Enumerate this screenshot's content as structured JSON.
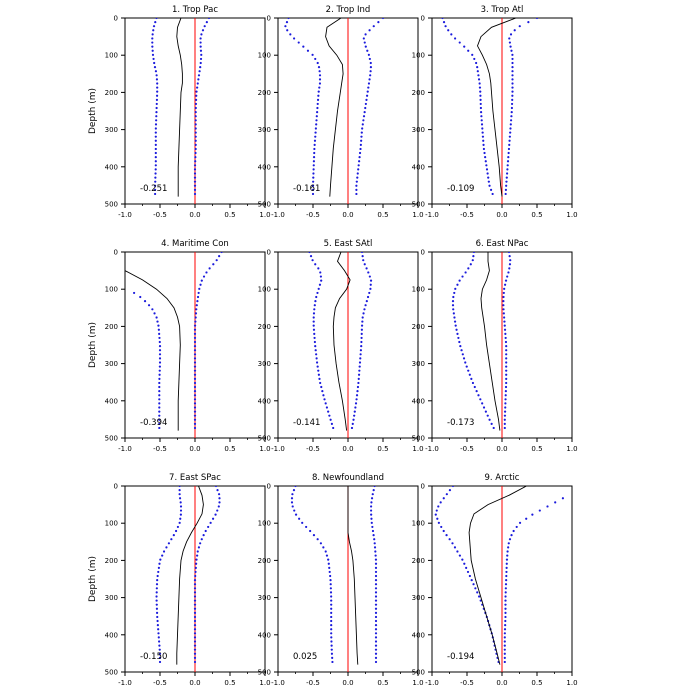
{
  "colors": {
    "profile": "#000000",
    "spread_dots": "#1a1adc",
    "zero_line": "#ff0000",
    "frame": "#000000"
  },
  "chart_data": [
    {
      "type": "line",
      "title": "1. Trop Pac",
      "ylabel": "Depth (m)",
      "value_label": "-0.251",
      "xlim": [
        -1.0,
        1.0
      ],
      "ylim": [
        500,
        0
      ],
      "x_ticks": [
        "-1.0",
        "-0.5",
        "0.0",
        "0.5",
        "1.0"
      ],
      "y_ticks": [
        "0",
        "100",
        "200",
        "300",
        "400",
        "500"
      ],
      "depth": [
        0,
        25,
        50,
        75,
        100,
        125,
        150,
        175,
        200,
        250,
        300,
        350,
        400,
        450,
        480
      ],
      "mean": [
        -0.2,
        -0.25,
        -0.26,
        -0.24,
        -0.21,
        -0.19,
        -0.18,
        -0.18,
        -0.2,
        -0.21,
        -0.22,
        -0.23,
        -0.24,
        -0.24,
        -0.24
      ],
      "lower": [
        -0.55,
        -0.59,
        -0.61,
        -0.61,
        -0.6,
        -0.58,
        -0.55,
        -0.54,
        -0.54,
        -0.55,
        -0.56,
        -0.56,
        -0.56,
        -0.57,
        -0.57
      ],
      "upper": [
        0.2,
        0.13,
        0.08,
        0.08,
        0.09,
        0.08,
        0.06,
        0.04,
        0.02,
        0.01,
        0.01,
        0.01,
        0.0,
        0.0,
        0.0
      ]
    },
    {
      "type": "line",
      "title": "2. Trop Ind",
      "ylabel": "",
      "value_label": "-0.161",
      "xlim": [
        -1.0,
        1.0
      ],
      "ylim": [
        500,
        0
      ],
      "x_ticks": [
        "-1.0",
        "-0.5",
        "0.0",
        "0.5",
        "1.0"
      ],
      "y_ticks": [
        "0",
        "100",
        "200",
        "300",
        "400",
        "500"
      ],
      "depth": [
        0,
        25,
        50,
        75,
        100,
        125,
        150,
        175,
        200,
        250,
        300,
        350,
        400,
        450,
        480
      ],
      "mean": [
        -0.1,
        -0.3,
        -0.32,
        -0.27,
        -0.16,
        -0.08,
        -0.07,
        -0.09,
        -0.11,
        -0.15,
        -0.18,
        -0.21,
        -0.23,
        -0.25,
        -0.26
      ],
      "lower": [
        -0.85,
        -0.9,
        -0.8,
        -0.65,
        -0.5,
        -0.42,
        -0.4,
        -0.4,
        -0.42,
        -0.44,
        -0.46,
        -0.48,
        -0.49,
        -0.5,
        -0.5
      ],
      "upper": [
        0.5,
        0.35,
        0.22,
        0.25,
        0.3,
        0.33,
        0.32,
        0.3,
        0.28,
        0.24,
        0.2,
        0.18,
        0.15,
        0.12,
        0.12
      ]
    },
    {
      "type": "line",
      "title": "3. Trop Atl",
      "ylabel": "",
      "value_label": "-0.109",
      "xlim": [
        -1.0,
        1.0
      ],
      "ylim": [
        500,
        0
      ],
      "x_ticks": [
        "-1.0",
        "-0.5",
        "0.0",
        "0.5",
        "1.0"
      ],
      "y_ticks": [
        "0",
        "100",
        "200",
        "300",
        "400",
        "500"
      ],
      "depth": [
        0,
        25,
        50,
        75,
        100,
        125,
        150,
        175,
        200,
        250,
        300,
        350,
        400,
        450,
        480
      ],
      "mean": [
        0.2,
        -0.15,
        -0.3,
        -0.35,
        -0.28,
        -0.22,
        -0.18,
        -0.16,
        -0.15,
        -0.13,
        -0.1,
        -0.07,
        -0.04,
        -0.02,
        0.0
      ],
      "lower": [
        -0.85,
        -0.8,
        -0.7,
        -0.55,
        -0.42,
        -0.36,
        -0.34,
        -0.32,
        -0.31,
        -0.3,
        -0.28,
        -0.26,
        -0.22,
        -0.18,
        -0.12
      ],
      "upper": [
        0.5,
        0.22,
        0.1,
        0.12,
        0.15,
        0.15,
        0.15,
        0.15,
        0.15,
        0.14,
        0.12,
        0.1,
        0.08,
        0.06,
        0.05
      ]
    },
    {
      "type": "line",
      "title": "4. Maritime Con",
      "ylabel": "Depth (m)",
      "value_label": "-0.394",
      "xlim": [
        -1.0,
        1.0
      ],
      "ylim": [
        500,
        0
      ],
      "x_ticks": [
        "-1.0",
        "-0.5",
        "0.0",
        "0.5",
        "1.0"
      ],
      "y_ticks": [
        "0",
        "100",
        "200",
        "300",
        "400",
        "500"
      ],
      "depth": [
        0,
        25,
        50,
        75,
        100,
        125,
        150,
        175,
        200,
        250,
        300,
        350,
        400,
        450,
        480
      ],
      "mean": [
        null,
        null,
        -1.0,
        -0.75,
        -0.55,
        -0.4,
        -0.3,
        -0.25,
        -0.22,
        -0.21,
        -0.22,
        -0.23,
        -0.24,
        -0.24,
        -0.24
      ],
      "lower": [
        null,
        null,
        null,
        null,
        -0.95,
        -0.75,
        -0.62,
        -0.55,
        -0.52,
        -0.5,
        -0.5,
        -0.51,
        -0.51,
        -0.51,
        -0.51
      ],
      "upper": [
        0.38,
        0.3,
        0.18,
        0.1,
        0.06,
        0.04,
        0.02,
        0.01,
        0.0,
        0.0,
        0.0,
        0.0,
        0.0,
        0.0,
        0.0
      ]
    },
    {
      "type": "line",
      "title": "5. East SAtl",
      "ylabel": "",
      "value_label": "-0.141",
      "xlim": [
        -1.0,
        1.0
      ],
      "ylim": [
        500,
        0
      ],
      "x_ticks": [
        "-1.0",
        "-0.5",
        "0.0",
        "0.5",
        "1.0"
      ],
      "y_ticks": [
        "0",
        "100",
        "200",
        "300",
        "400",
        "500"
      ],
      "depth": [
        0,
        25,
        50,
        75,
        100,
        125,
        150,
        175,
        200,
        250,
        300,
        350,
        400,
        450,
        480
      ],
      "mean": [
        -0.1,
        -0.15,
        -0.05,
        0.03,
        -0.02,
        -0.12,
        -0.18,
        -0.2,
        -0.21,
        -0.2,
        -0.17,
        -0.13,
        -0.08,
        -0.04,
        -0.02
      ],
      "lower": [
        -0.55,
        -0.5,
        -0.4,
        -0.38,
        -0.42,
        -0.46,
        -0.48,
        -0.49,
        -0.49,
        -0.47,
        -0.44,
        -0.4,
        -0.33,
        -0.25,
        -0.2
      ],
      "upper": [
        0.2,
        0.22,
        0.28,
        0.33,
        0.32,
        0.28,
        0.24,
        0.21,
        0.2,
        0.19,
        0.17,
        0.15,
        0.12,
        0.08,
        0.05
      ]
    },
    {
      "type": "line",
      "title": "6. East NPac",
      "ylabel": "",
      "value_label": "-0.173",
      "xlim": [
        -1.0,
        1.0
      ],
      "ylim": [
        500,
        0
      ],
      "x_ticks": [
        "-1.0",
        "-0.5",
        "0.0",
        "0.5",
        "1.0"
      ],
      "y_ticks": [
        "0",
        "100",
        "200",
        "300",
        "400",
        "500"
      ],
      "depth": [
        0,
        25,
        50,
        75,
        100,
        125,
        150,
        175,
        200,
        250,
        300,
        350,
        400,
        450,
        480
      ],
      "mean": [
        -0.2,
        -0.2,
        -0.18,
        -0.22,
        -0.28,
        -0.3,
        -0.29,
        -0.27,
        -0.25,
        -0.22,
        -0.18,
        -0.14,
        -0.1,
        -0.05,
        -0.03
      ],
      "lower": [
        -0.4,
        -0.42,
        -0.5,
        -0.6,
        -0.67,
        -0.7,
        -0.7,
        -0.68,
        -0.66,
        -0.6,
        -0.52,
        -0.42,
        -0.3,
        -0.18,
        -0.1
      ],
      "upper": [
        0.1,
        0.12,
        0.1,
        0.06,
        0.03,
        0.02,
        0.02,
        0.03,
        0.04,
        0.06,
        0.06,
        0.06,
        0.05,
        0.04,
        0.04
      ]
    },
    {
      "type": "line",
      "title": "7. East SPac",
      "ylabel": "Depth (m)",
      "value_label": "-0.150",
      "xlim": [
        -1.0,
        1.0
      ],
      "ylim": [
        500,
        0
      ],
      "x_ticks": [
        "-1.0",
        "-0.5",
        "0.0",
        "0.5",
        "1.0"
      ],
      "y_ticks": [
        "0",
        "100",
        "200",
        "300",
        "400",
        "500"
      ],
      "depth": [
        0,
        25,
        50,
        75,
        100,
        125,
        150,
        175,
        200,
        250,
        300,
        350,
        400,
        450,
        480
      ],
      "mean": [
        0.05,
        0.1,
        0.12,
        0.1,
        0.03,
        -0.05,
        -0.12,
        -0.17,
        -0.2,
        -0.22,
        -0.23,
        -0.24,
        -0.25,
        -0.26,
        -0.26
      ],
      "lower": [
        -0.22,
        -0.22,
        -0.2,
        -0.2,
        -0.22,
        -0.28,
        -0.36,
        -0.44,
        -0.5,
        -0.54,
        -0.55,
        -0.54,
        -0.52,
        -0.5,
        -0.5
      ],
      "upper": [
        0.3,
        0.35,
        0.35,
        0.3,
        0.22,
        0.14,
        0.08,
        0.04,
        0.02,
        0.0,
        0.0,
        0.0,
        0.0,
        0.0,
        0.0
      ]
    },
    {
      "type": "line",
      "title": "8. Newfoundland",
      "ylabel": "",
      "value_label": "0.025",
      "xlim": [
        -1.0,
        1.0
      ],
      "ylim": [
        500,
        0
      ],
      "x_ticks": [
        "-1.0",
        "-0.5",
        "0.0",
        "0.5",
        "1.0"
      ],
      "y_ticks": [
        "0",
        "100",
        "200",
        "300",
        "400",
        "500"
      ],
      "depth": [
        0,
        25,
        50,
        75,
        100,
        125,
        150,
        175,
        200,
        250,
        300,
        350,
        400,
        450,
        480
      ],
      "mean": [
        0.0,
        0.0,
        0.0,
        0.0,
        0.0,
        0.0,
        0.02,
        0.05,
        0.07,
        0.09,
        0.1,
        0.11,
        0.12,
        0.13,
        0.14
      ],
      "lower": [
        -0.75,
        -0.8,
        -0.8,
        -0.75,
        -0.65,
        -0.52,
        -0.4,
        -0.32,
        -0.28,
        -0.25,
        -0.24,
        -0.24,
        -0.24,
        -0.23,
        -0.22
      ],
      "upper": [
        0.38,
        0.35,
        0.33,
        0.33,
        0.34,
        0.36,
        0.38,
        0.39,
        0.4,
        0.4,
        0.4,
        0.4,
        0.4,
        0.4,
        0.4
      ]
    },
    {
      "type": "line",
      "title": "9. Arctic",
      "ylabel": "",
      "value_label": "-0.194",
      "xlim": [
        -1.0,
        1.0
      ],
      "ylim": [
        500,
        0
      ],
      "x_ticks": [
        "-1.0",
        "-0.5",
        "0.0",
        "0.5",
        "1.0"
      ],
      "y_ticks": [
        "0",
        "100",
        "200",
        "300",
        "400",
        "500"
      ],
      "depth": [
        0,
        25,
        50,
        75,
        100,
        125,
        150,
        175,
        200,
        250,
        300,
        350,
        400,
        450,
        480
      ],
      "mean": [
        0.35,
        0.1,
        -0.2,
        -0.4,
        -0.45,
        -0.47,
        -0.46,
        -0.45,
        -0.44,
        -0.38,
        -0.3,
        -0.22,
        -0.14,
        -0.07,
        -0.03
      ],
      "lower": [
        -0.7,
        -0.8,
        -0.9,
        -0.95,
        -0.9,
        -0.82,
        -0.72,
        -0.64,
        -0.56,
        -0.44,
        -0.32,
        -0.22,
        -0.14,
        -0.08,
        -0.04
      ],
      "upper": [
        null,
        0.95,
        0.7,
        0.45,
        0.25,
        0.15,
        0.1,
        0.08,
        0.07,
        0.06,
        0.05,
        0.05,
        0.04,
        0.04,
        0.04
      ]
    }
  ]
}
